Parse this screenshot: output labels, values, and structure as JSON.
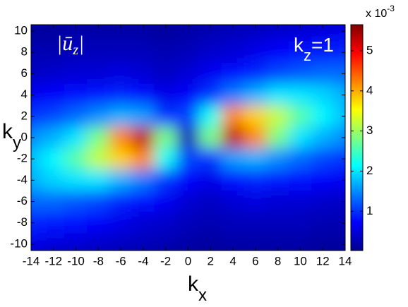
{
  "chart_data": {
    "type": "heatmap",
    "colormap": "jet",
    "xlabel": {
      "text": "k",
      "sub": "x"
    },
    "ylabel": {
      "text": "k",
      "sub": "y"
    },
    "annotations": [
      {
        "text": "|ū",
        "sub": "z",
        "end": "|"
      },
      {
        "text": "k",
        "sub": "z",
        "end": "=1"
      }
    ],
    "colorbar_label": {
      "text": "x 10",
      "sup": "-3"
    },
    "x": [
      -14,
      -12,
      -10,
      -8,
      -6,
      -4,
      -2,
      0,
      2,
      4,
      6,
      8,
      10,
      12,
      14
    ],
    "y": [
      10,
      8,
      6,
      4,
      2,
      0,
      -2,
      -4,
      -6,
      -8,
      -10
    ],
    "z": [
      [
        0.2,
        0.2,
        0.25,
        0.25,
        0.25,
        0.25,
        0.2,
        0.25,
        0.3,
        0.35,
        0.4,
        0.45,
        0.5,
        0.55,
        0.6
      ],
      [
        0.3,
        0.3,
        0.35,
        0.35,
        0.35,
        0.35,
        0.3,
        0.35,
        0.45,
        0.5,
        0.6,
        0.7,
        0.8,
        0.85,
        0.9
      ],
      [
        0.4,
        0.45,
        0.5,
        0.5,
        0.55,
        0.5,
        0.4,
        0.5,
        0.65,
        0.8,
        0.9,
        1.1,
        1.2,
        1.3,
        1.3
      ],
      [
        0.65,
        0.7,
        0.8,
        0.85,
        0.9,
        0.8,
        0.6,
        0.7,
        1.0,
        1.4,
        1.7,
        2.0,
        2.0,
        1.9,
        1.7
      ],
      [
        1.0,
        1.1,
        1.3,
        1.5,
        1.7,
        1.6,
        1.0,
        1.1,
        2.2,
        4.2,
        3.8,
        3.2,
        2.6,
        2.1,
        1.8
      ],
      [
        1.5,
        1.7,
        2.0,
        2.8,
        4.2,
        5.3,
        2.8,
        0.3,
        2.8,
        5.3,
        4.2,
        2.8,
        2.0,
        1.7,
        1.5
      ],
      [
        1.8,
        2.1,
        2.6,
        3.2,
        3.8,
        4.2,
        2.2,
        1.1,
        1.0,
        1.6,
        1.7,
        1.5,
        1.3,
        1.1,
        1.0
      ],
      [
        1.7,
        1.9,
        2.0,
        2.0,
        1.7,
        1.4,
        1.0,
        0.7,
        0.6,
        0.8,
        0.9,
        0.85,
        0.8,
        0.7,
        0.65
      ],
      [
        1.3,
        1.3,
        1.2,
        1.1,
        0.9,
        0.8,
        0.65,
        0.5,
        0.4,
        0.5,
        0.55,
        0.5,
        0.5,
        0.45,
        0.4
      ],
      [
        0.9,
        0.85,
        0.8,
        0.7,
        0.6,
        0.5,
        0.45,
        0.35,
        0.3,
        0.35,
        0.35,
        0.35,
        0.35,
        0.3,
        0.3
      ],
      [
        0.6,
        0.55,
        0.5,
        0.45,
        0.4,
        0.35,
        0.3,
        0.25,
        0.2,
        0.25,
        0.25,
        0.25,
        0.25,
        0.2,
        0.2
      ]
    ],
    "xlim": [
      -14,
      14
    ],
    "ylim": [
      -10.6,
      10.6
    ],
    "xticks": [
      -14,
      -12,
      -10,
      -8,
      -6,
      -4,
      -2,
      0,
      2,
      4,
      6,
      8,
      10,
      12,
      14
    ],
    "yticks": [
      -10,
      -8,
      -6,
      -4,
      -2,
      0,
      2,
      4,
      6,
      8,
      10
    ],
    "clim": [
      0.02,
      5.65
    ],
    "cticks": [
      1,
      2,
      3,
      4,
      5
    ]
  }
}
